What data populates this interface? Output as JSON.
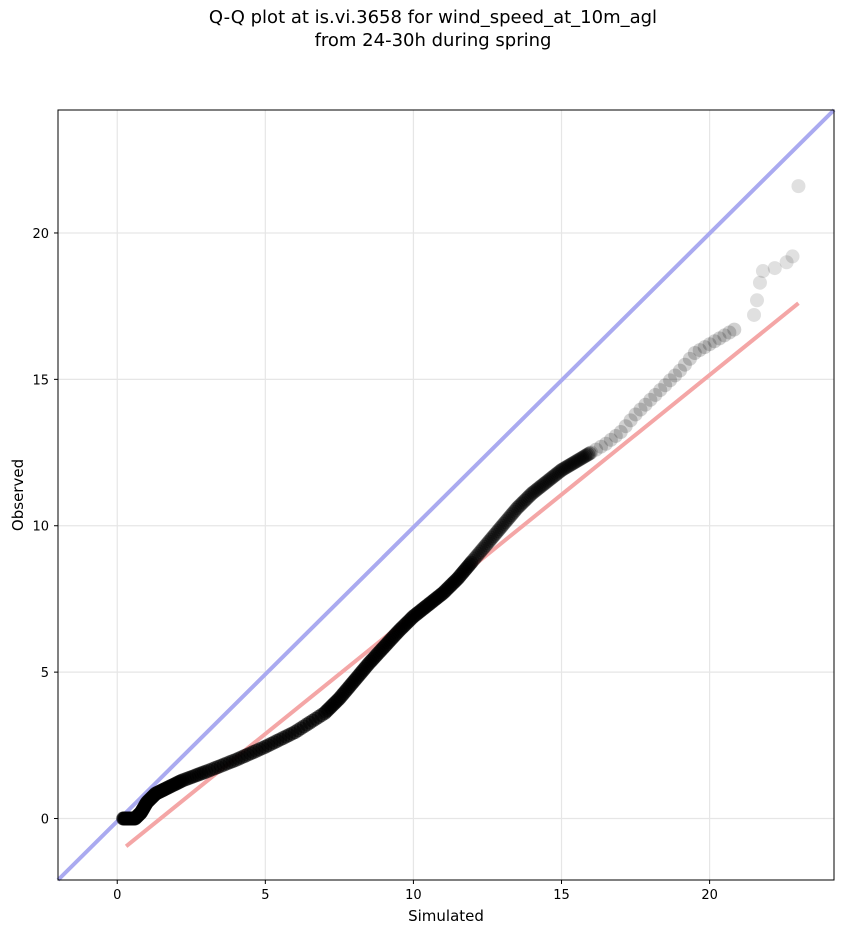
{
  "chart_data": {
    "type": "scatter",
    "title": "Q-Q plot at is.vi.3658 for wind_speed_at_10m_agl",
    "subtitle": "from 24-30h during spring",
    "xlabel": "Simulated",
    "ylabel": "Observed",
    "xlim": [
      -2.0,
      24.2
    ],
    "ylim": [
      -2.1,
      24.2
    ],
    "xticks": [
      0,
      5,
      10,
      15,
      20
    ],
    "yticks": [
      0,
      5,
      10,
      15,
      20
    ],
    "grid": true,
    "legend": "none",
    "marker_color": "#000000",
    "reference_line": {
      "from": [
        -2.0,
        -2.1
      ],
      "to": [
        24.2,
        24.2
      ],
      "color": "#aaaaf0"
    },
    "fit_line": {
      "from": [
        0.3,
        -0.95
      ],
      "to": [
        23.0,
        17.6
      ],
      "color": "#f4a6a6"
    },
    "qq_curve": [
      [
        0.2,
        0.0
      ],
      [
        0.4,
        0.0
      ],
      [
        0.6,
        0.0
      ],
      [
        0.8,
        0.2
      ],
      [
        1.0,
        0.55
      ],
      [
        1.3,
        0.85
      ],
      [
        1.7,
        1.05
      ],
      [
        2.2,
        1.3
      ],
      [
        3.0,
        1.6
      ],
      [
        4.0,
        2.0
      ],
      [
        5.0,
        2.45
      ],
      [
        6.0,
        2.95
      ],
      [
        7.0,
        3.6
      ],
      [
        7.5,
        4.1
      ],
      [
        8.0,
        4.7
      ],
      [
        8.5,
        5.3
      ],
      [
        9.0,
        5.85
      ],
      [
        9.5,
        6.4
      ],
      [
        10.0,
        6.9
      ],
      [
        10.5,
        7.3
      ],
      [
        11.0,
        7.7
      ],
      [
        11.5,
        8.2
      ],
      [
        12.0,
        8.8
      ],
      [
        12.5,
        9.4
      ],
      [
        13.0,
        10.0
      ],
      [
        13.5,
        10.6
      ],
      [
        14.0,
        11.1
      ],
      [
        14.5,
        11.5
      ],
      [
        15.0,
        11.9
      ],
      [
        15.5,
        12.2
      ],
      [
        16.0,
        12.5
      ],
      [
        16.5,
        12.8
      ],
      [
        17.0,
        13.2
      ],
      [
        17.5,
        13.8
      ],
      [
        18.0,
        14.3
      ],
      [
        18.5,
        14.8
      ],
      [
        19.0,
        15.3
      ],
      [
        19.5,
        15.9
      ],
      [
        20.0,
        16.2
      ],
      [
        20.5,
        16.5
      ],
      [
        21.0,
        16.8
      ]
    ],
    "tail_points": [
      [
        21.5,
        17.2
      ],
      [
        21.6,
        17.7
      ],
      [
        21.7,
        18.3
      ],
      [
        21.8,
        18.7
      ],
      [
        22.2,
        18.8
      ],
      [
        22.6,
        19.0
      ],
      [
        22.8,
        19.2
      ],
      [
        23.0,
        21.6
      ]
    ]
  }
}
